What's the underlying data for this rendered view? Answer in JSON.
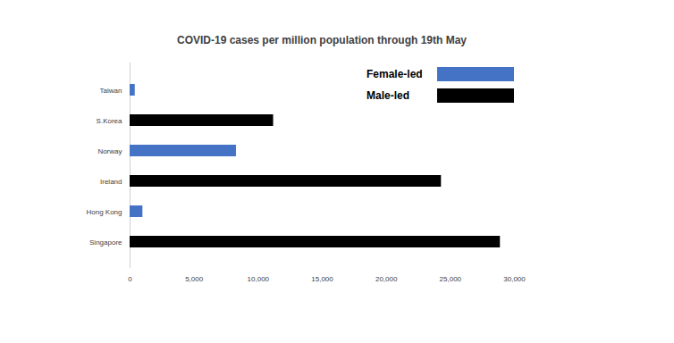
{
  "chart_data": {
    "type": "bar",
    "orientation": "horizontal",
    "title": "COVID-19 cases per million population through 19th May",
    "categories": [
      "Taiwan",
      "S.Korea",
      "Norway",
      "Ireland",
      "Hong Kong",
      "Singapore"
    ],
    "series": [
      {
        "name": "Female-led",
        "color": "#4472c4",
        "values": [
          400,
          null,
          8300,
          null,
          1000,
          null
        ]
      },
      {
        "name": "Male-led",
        "color": "#000000",
        "values": [
          null,
          11200,
          null,
          24300,
          null,
          28900
        ]
      }
    ],
    "xlim": [
      0,
      30000
    ],
    "xticks": [
      0,
      {
        "value": 5000,
        "label": "5,000"
      },
      {
        "value": 10000,
        "label": "10,000"
      },
      {
        "value": 15000,
        "label": "15,000"
      },
      {
        "value": 20000,
        "label": "20,000"
      },
      {
        "value": 25000,
        "label": "25,000"
      },
      {
        "value": 30000,
        "label": "30,000"
      }
    ],
    "legend": "top-right",
    "grid": false
  }
}
